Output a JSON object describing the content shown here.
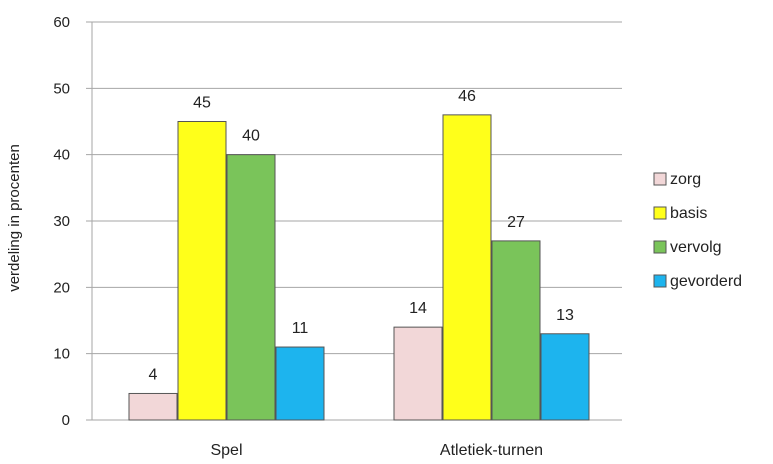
{
  "chart_data": {
    "type": "bar",
    "title": "",
    "xlabel": "",
    "ylabel": "verdeling in procenten",
    "ylim": [
      0,
      60
    ],
    "yticks": [
      0,
      10,
      20,
      30,
      40,
      50,
      60
    ],
    "grid": true,
    "legend_position": "right",
    "categories": [
      "Spel",
      "Atletiek-turnen"
    ],
    "series": [
      {
        "name": "zorg",
        "values": [
          4,
          14
        ],
        "color": "#f2d7d8"
      },
      {
        "name": "basis",
        "values": [
          45,
          46
        ],
        "color": "#ffff1a"
      },
      {
        "name": "vervolg",
        "values": [
          40,
          27
        ],
        "color": "#7ac45a"
      },
      {
        "name": "gevorderd",
        "values": [
          11,
          13
        ],
        "color": "#1db4ee"
      }
    ]
  }
}
